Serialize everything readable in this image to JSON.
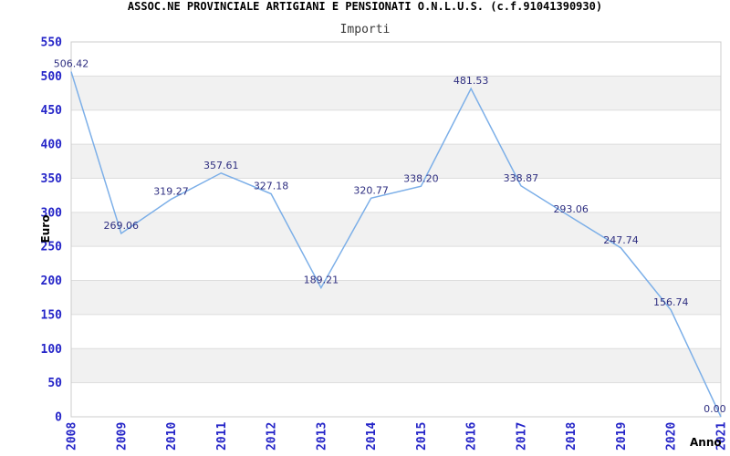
{
  "header": {
    "title": "ASSOC.NE PROVINCIALE ARTIGIANI E PENSIONATI O.N.L.U.S. (c.f.91041390930)",
    "subtitle": "Importi"
  },
  "chart_data": {
    "type": "line",
    "title": "ASSOC.NE PROVINCIALE ARTIGIANI E PENSIONATI O.N.L.U.S. (c.f.91041390930)",
    "subtitle": "Importi",
    "xlabel": "Anno",
    "ylabel": "Euro",
    "categories": [
      "2008",
      "2009",
      "2010",
      "2011",
      "2012",
      "2013",
      "2014",
      "2015",
      "2016",
      "2017",
      "2018",
      "2019",
      "2020",
      "2021"
    ],
    "values": [
      506.42,
      269.06,
      319.27,
      357.61,
      327.18,
      189.21,
      320.77,
      338.2,
      481.53,
      338.87,
      293.06,
      247.74,
      156.74,
      0.0
    ],
    "point_labels": [
      "506.42",
      "269.06",
      "319.27",
      "357.61",
      "327.18",
      "189.21",
      "320.77",
      "338.20",
      "481.53",
      "338.87",
      "293.06",
      "247.74",
      "156.74",
      "0.00"
    ],
    "ylim": [
      0,
      550
    ],
    "ytick_step": 50,
    "yticks": [
      0,
      50,
      100,
      150,
      200,
      250,
      300,
      350,
      400,
      450,
      500,
      550
    ],
    "grid": "horizontal, every 50, alternating shaded bands",
    "legend": "none"
  },
  "colors": {
    "line": "#7cafe8",
    "point_label": "#2e2e80",
    "tick_label": "#2525c8",
    "band": "#f1f1f1",
    "grid": "#dddddd",
    "frame": "#cccccc",
    "background": "#ffffff"
  }
}
